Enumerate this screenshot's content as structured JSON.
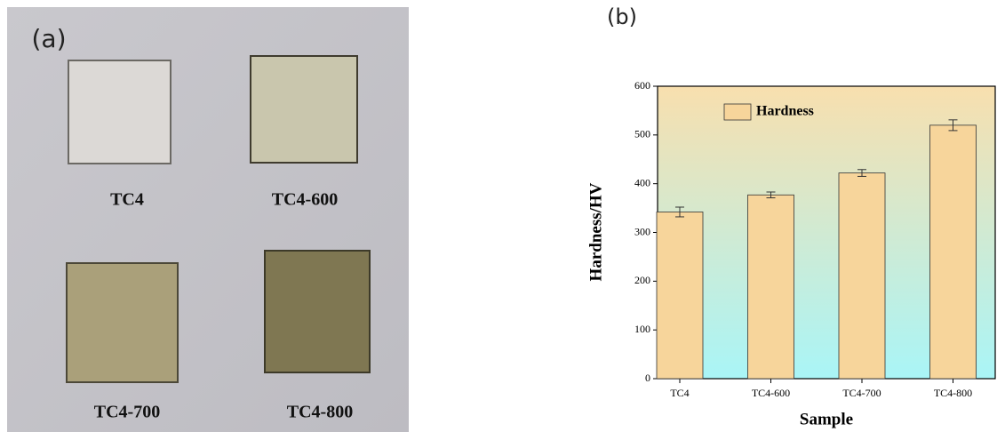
{
  "photo": {
    "label": "(a)",
    "samples": [
      "TC4",
      "TC4-600",
      "TC4-700",
      "TC4-800"
    ]
  },
  "chart_data": {
    "type": "bar",
    "panel_label": "(b)",
    "x_label": "Sample",
    "y_label": "Hardness/HV",
    "categories": [
      "TC4",
      "TC4-600",
      "TC4-700",
      "TC4-800"
    ],
    "series": [
      {
        "name": "Hardness",
        "color": "#f7d59b",
        "values": [
          342,
          377,
          422,
          520
        ],
        "errors": [
          10,
          6,
          7,
          11
        ]
      }
    ],
    "ylim": [
      0,
      600
    ],
    "yticks": [
      0,
      100,
      200,
      300,
      400,
      500,
      600
    ],
    "legend": "upper left"
  }
}
